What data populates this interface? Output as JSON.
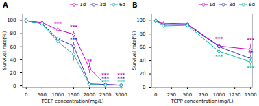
{
  "chart_data": [
    {
      "type": "line",
      "title": "A",
      "x_label": "TCEP concentration(mg/L)",
      "y_label": "Survival rate(%)",
      "x": [
        0,
        500,
        1000,
        1500,
        2000,
        2500,
        3000
      ],
      "series": [
        {
          "name": "1d",
          "color": "#cc00cc",
          "marker": "diamond",
          "values": [
            100,
            97,
            86,
            79,
            27,
            2,
            1
          ],
          "yerr": [
            0.5,
            2,
            4,
            5,
            8,
            1,
            0.5
          ]
        },
        {
          "name": "3d",
          "color": "#3333cc",
          "marker": "diamond",
          "values": [
            100,
            95,
            72,
            61,
            3,
            2,
            1
          ],
          "yerr": [
            0.5,
            2,
            5,
            6,
            1,
            0.5,
            0.5
          ]
        },
        {
          "name": "6d",
          "color": "#00bbaa",
          "marker": "diamond",
          "values": [
            100,
            95,
            68,
            48,
            2,
            1,
            1
          ],
          "yerr": [
            0.5,
            3,
            8,
            10,
            1,
            0.5,
            0.5
          ]
        }
      ],
      "annotations": [
        {
          "text": "***",
          "x": 1000,
          "y": 93,
          "color": "#cc00cc"
        },
        {
          "text": "***",
          "x": 1500,
          "y": 87,
          "color": "#cc00cc"
        },
        {
          "text": "***",
          "x": 1500,
          "y": 69,
          "color": "#3333cc"
        },
        {
          "text": "**",
          "x": 2000,
          "y": 35,
          "color": "#cc00cc"
        },
        {
          "text": "***",
          "x": 2500,
          "y": 14,
          "color": "#cc00cc"
        },
        {
          "text": "***",
          "x": 2500,
          "y": 9,
          "color": "#3333cc"
        },
        {
          "text": "***",
          "x": 2500,
          "y": 4,
          "color": "#00bbaa"
        },
        {
          "text": "***",
          "x": 3000,
          "y": 14,
          "color": "#cc00cc"
        },
        {
          "text": "***",
          "x": 3000,
          "y": 9,
          "color": "#3333cc"
        },
        {
          "text": "***",
          "x": 3000,
          "y": 4,
          "color": "#00bbaa"
        }
      ],
      "xlim": [
        -125,
        3060
      ],
      "xticks": [
        0,
        500,
        1000,
        1500,
        2000,
        2500,
        3000
      ],
      "ylim": [
        -2,
        110
      ],
      "yticks": [
        0,
        20,
        40,
        60,
        80,
        100
      ],
      "legend": "upper right"
    },
    {
      "type": "line",
      "title": "B",
      "x_label": "TCPP concentration(mg/L)",
      "y_label": "Survival rate(%)",
      "x": [
        0,
        125,
        500,
        1000,
        1500
      ],
      "series": [
        {
          "name": "1d",
          "color": "#cc00cc",
          "marker": "diamond",
          "values": [
            100,
            96,
            95,
            62,
            57
          ],
          "yerr": [
            0.5,
            2,
            2,
            5,
            8
          ]
        },
        {
          "name": "3d",
          "color": "#3333cc",
          "marker": "diamond",
          "values": [
            100,
            94,
            94,
            61,
            43
          ],
          "yerr": [
            0.5,
            3,
            2,
            5,
            5
          ]
        },
        {
          "name": "6d",
          "color": "#00bbaa",
          "marker": "diamond",
          "values": [
            100,
            92,
            93,
            54,
            38
          ],
          "yerr": [
            0.5,
            3,
            2,
            6,
            6
          ]
        }
      ],
      "annotations": [
        {
          "text": "***",
          "x": 1000,
          "y": 70,
          "color": "#cc00cc"
        },
        {
          "text": "***",
          "x": 1000,
          "y": 44,
          "color": "#00bbaa"
        },
        {
          "text": "***",
          "x": 1500,
          "y": 68,
          "color": "#cc00cc"
        },
        {
          "text": "**",
          "x": 1500,
          "y": 50,
          "color": "#3333cc"
        },
        {
          "text": "***",
          "x": 1500,
          "y": 26,
          "color": "#00bbaa"
        }
      ],
      "xlim": [
        -62.5,
        1530
      ],
      "xticks": [
        0,
        250,
        500,
        750,
        1000,
        1250,
        1500
      ],
      "ylim": [
        0,
        110
      ],
      "yticks": [
        0,
        20,
        40,
        60,
        80,
        100
      ],
      "legend": "upper right"
    }
  ]
}
